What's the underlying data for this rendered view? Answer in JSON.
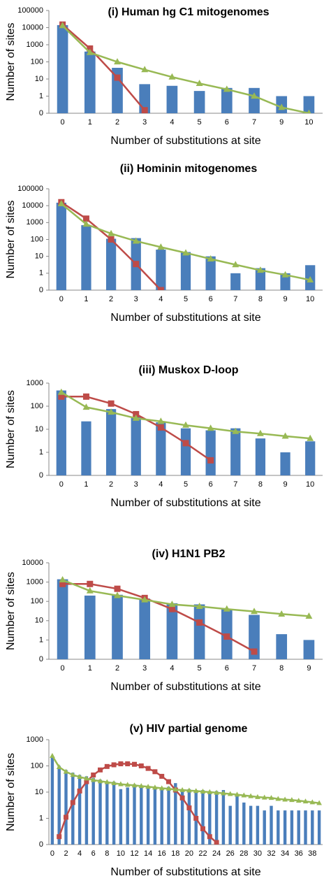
{
  "chart_data": [
    {
      "type": "bar",
      "title": "(i) Human hg C1 mitogenomes",
      "y_label": "Number of sites",
      "x_label": "Number of substitutions at site",
      "categories": [
        0,
        1,
        2,
        3,
        4,
        5,
        6,
        7,
        9,
        10
      ],
      "log_y": true,
      "ylim": [
        0.1,
        100000
      ],
      "yticks": [
        {
          "value": 0.1,
          "label": "0"
        },
        1,
        10,
        100,
        1000,
        10000,
        100000
      ],
      "series": [
        {
          "kind": "bar",
          "color": "#4a7ebb",
          "values": [
            14000,
            400,
            45,
            5,
            4,
            2,
            3,
            3,
            1,
            1
          ]
        },
        {
          "kind": "line",
          "marker": "square",
          "color": "#be4b48",
          "values": [
            15000,
            600,
            12,
            0.15,
            null,
            null,
            null,
            null,
            null,
            null
          ]
        },
        {
          "kind": "line",
          "marker": "triangle",
          "color": "#98b954",
          "values": [
            13000,
            350,
            100,
            35,
            13,
            5.5,
            2.5,
            1,
            0.22,
            0.1
          ]
        }
      ]
    },
    {
      "type": "bar",
      "title": "(ii) Hominin mitogenomes",
      "y_label": "Number of sites",
      "x_label": "Number of substitutions at site",
      "categories": [
        0,
        1,
        2,
        3,
        4,
        5,
        6,
        7,
        8,
        9,
        10
      ],
      "log_y": true,
      "ylim": [
        0.1,
        100000
      ],
      "yticks": [
        {
          "value": 0.1,
          "label": "0"
        },
        1,
        10,
        100,
        1000,
        10000,
        100000
      ],
      "series": [
        {
          "kind": "bar",
          "color": "#4a7ebb",
          "values": [
            15000,
            700,
            110,
            120,
            25,
            18,
            10,
            1,
            2,
            1,
            3
          ]
        },
        {
          "kind": "line",
          "marker": "square",
          "color": "#be4b48",
          "values": [
            16000,
            1700,
            100,
            3.5,
            0.1,
            null,
            null,
            null,
            null,
            null,
            null
          ]
        },
        {
          "kind": "line",
          "marker": "triangle",
          "color": "#98b954",
          "values": [
            13000,
            800,
            220,
            80,
            35,
            16,
            7,
            3.2,
            1.5,
            0.8,
            0.4
          ]
        }
      ]
    },
    {
      "type": "bar",
      "title": "(iii) Muskox D-loop",
      "y_label": "Number of sites",
      "x_label": "Number of substitutions at site",
      "categories": [
        0,
        1,
        2,
        3,
        4,
        5,
        6,
        7,
        8,
        9,
        10
      ],
      "log_y": true,
      "ylim": [
        0.1,
        1000
      ],
      "yticks": [
        {
          "value": 0.1,
          "label": "0"
        },
        1,
        10,
        100,
        1000
      ],
      "series": [
        {
          "kind": "bar",
          "color": "#4a7ebb",
          "values": [
            480,
            22,
            75,
            35,
            20,
            11,
            9,
            11,
            4,
            1,
            3
          ]
        },
        {
          "kind": "line",
          "marker": "square",
          "color": "#be4b48",
          "values": [
            260,
            260,
            130,
            45,
            12,
            2.5,
            0.45,
            null,
            null,
            null,
            null
          ]
        },
        {
          "kind": "line",
          "marker": "triangle",
          "color": "#98b954",
          "values": [
            400,
            90,
            55,
            30,
            22,
            15,
            11,
            8,
            6.5,
            5,
            4
          ]
        }
      ]
    },
    {
      "type": "bar",
      "title": "(iv) H1N1 PB2",
      "y_label": "Number of sites",
      "x_label": "Number of substitutions at site",
      "categories": [
        0,
        1,
        2,
        3,
        4,
        5,
        6,
        7,
        8,
        9
      ],
      "log_y": true,
      "ylim": [
        0.1,
        10000
      ],
      "yticks": [
        {
          "value": 0.1,
          "label": "0"
        },
        1,
        10,
        100,
        1000,
        10000
      ],
      "series": [
        {
          "kind": "bar",
          "color": "#4a7ebb",
          "values": [
            1400,
            200,
            220,
            140,
            80,
            70,
            40,
            20,
            2,
            1
          ]
        },
        {
          "kind": "line",
          "marker": "square",
          "color": "#be4b48",
          "values": [
            800,
            800,
            450,
            150,
            40,
            8,
            1.5,
            0.25,
            null,
            null
          ]
        },
        {
          "kind": "line",
          "marker": "triangle",
          "color": "#98b954",
          "values": [
            1300,
            350,
            200,
            120,
            70,
            55,
            40,
            30,
            22,
            17
          ]
        }
      ]
    },
    {
      "type": "bar",
      "title": "(v) HIV partial genome",
      "y_label": "Number of sites",
      "x_label": "Number of substitutions at site",
      "categories": [
        0,
        null,
        2,
        null,
        4,
        null,
        6,
        null,
        8,
        null,
        10,
        null,
        12,
        null,
        14,
        null,
        16,
        null,
        18,
        null,
        20,
        null,
        22,
        null,
        24,
        null,
        26,
        null,
        28,
        null,
        30,
        null,
        32,
        null,
        34,
        null,
        36,
        null,
        38,
        null
      ],
      "log_y": true,
      "ylim": [
        0.1,
        1000
      ],
      "yticks": [
        {
          "value": 0.1,
          "label": "0"
        },
        1,
        10,
        100,
        1000
      ],
      "series": [
        {
          "kind": "bar",
          "color": "#4a7ebb",
          "values": [
            220,
            100,
            70,
            55,
            45,
            40,
            35,
            30,
            25,
            25,
            13,
            15,
            20,
            17,
            15,
            14,
            14,
            16,
            22,
            11,
            13,
            12,
            12,
            11,
            11,
            12,
            3,
            8,
            4,
            3,
            3,
            2,
            3,
            2,
            2,
            2,
            2,
            2,
            2,
            2
          ]
        },
        {
          "kind": "line",
          "marker": "square",
          "color": "#be4b48",
          "values": [
            null,
            0.2,
            1.1,
            4,
            11,
            25,
            45,
            70,
            95,
            110,
            120,
            120,
            115,
            100,
            80,
            60,
            40,
            25,
            12,
            6,
            2.5,
            1,
            0.4,
            0.2,
            0.12,
            null,
            null,
            null,
            null,
            null,
            null,
            null,
            null,
            null,
            null,
            null,
            null,
            null,
            null,
            null
          ]
        },
        {
          "kind": "line",
          "marker": "triangle",
          "color": "#98b954",
          "values": [
            240,
            90,
            60,
            45,
            38,
            33,
            29,
            26,
            24,
            22,
            20,
            19,
            18,
            17,
            16,
            15,
            14,
            13.5,
            12.5,
            12,
            11.5,
            11,
            10.5,
            10,
            9.5,
            9,
            8.5,
            8,
            7.5,
            7,
            6.5,
            6.2,
            6,
            5.5,
            5.2,
            5,
            4.7,
            4.4,
            4.1,
            3.8
          ]
        }
      ]
    }
  ]
}
